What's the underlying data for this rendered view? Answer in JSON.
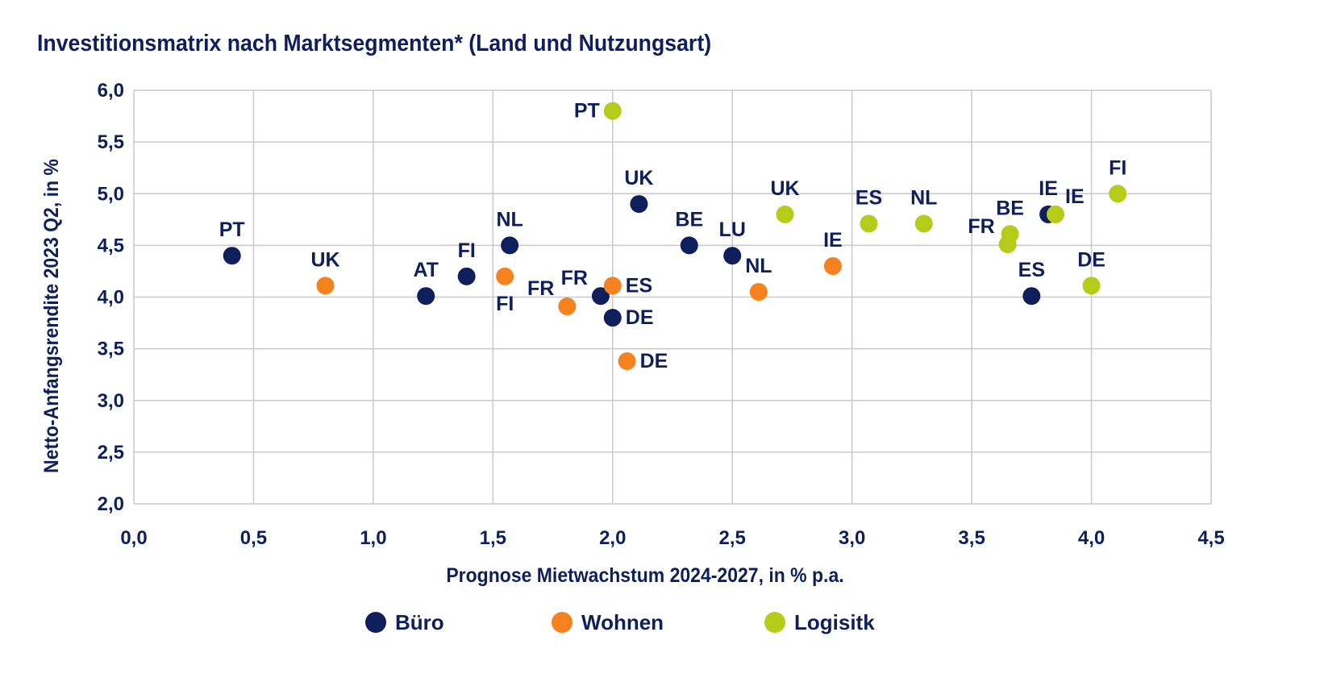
{
  "chart_data": {
    "type": "scatter",
    "title": "Investitionsmatrix nach Marktsegmenten* (Land und Nutzungsart)",
    "xlabel": "Prognose Mietwachstum 2024-2027, in % p.a.",
    "ylabel": "Netto-Anfangsrendite 2023 Q2, in %",
    "xlim": [
      0,
      4.5
    ],
    "ylim": [
      2.0,
      6.0
    ],
    "xticks": [
      "0,0",
      "0,5",
      "1,0",
      "1,5",
      "2,0",
      "2,5",
      "3,0",
      "3,5",
      "4,0",
      "4,5"
    ],
    "yticks": [
      "2,0",
      "2,5",
      "3,0",
      "3,5",
      "4,0",
      "4,5",
      "5,0",
      "5,5",
      "6,0"
    ],
    "grid": true,
    "legend_position": "bottom",
    "series": [
      {
        "name": "Büro",
        "color": "#0f1f5c",
        "points": [
          {
            "label": "PT",
            "x": 0.41,
            "y": 4.4,
            "label_pos": "top"
          },
          {
            "label": "AT",
            "x": 1.22,
            "y": 4.01,
            "label_pos": "top"
          },
          {
            "label": "FI",
            "x": 1.39,
            "y": 4.2,
            "label_pos": "top"
          },
          {
            "label": "NL",
            "x": 1.57,
            "y": 4.5,
            "label_pos": "top"
          },
          {
            "label": "FR",
            "x": 1.95,
            "y": 4.01,
            "label_pos": "top-left"
          },
          {
            "label": "DE",
            "x": 2.0,
            "y": 3.8,
            "label_pos": "right"
          },
          {
            "label": "UK",
            "x": 2.11,
            "y": 4.9,
            "label_pos": "top"
          },
          {
            "label": "BE",
            "x": 2.32,
            "y": 4.5,
            "label_pos": "top"
          },
          {
            "label": "LU",
            "x": 2.5,
            "y": 4.4,
            "label_pos": "top"
          },
          {
            "label": "ES",
            "x": 3.75,
            "y": 4.01,
            "label_pos": "top"
          },
          {
            "label": "IE",
            "x": 3.82,
            "y": 4.8,
            "label_pos": "top"
          }
        ]
      },
      {
        "name": "Wohnen",
        "color": "#f5821f",
        "points": [
          {
            "label": "UK",
            "x": 0.8,
            "y": 4.11,
            "label_pos": "top"
          },
          {
            "label": "FI",
            "x": 1.55,
            "y": 4.2,
            "label_pos": "bottom"
          },
          {
            "label": "FR",
            "x": 1.81,
            "y": 3.91,
            "label_pos": "top-left"
          },
          {
            "label": "ES",
            "x": 2.0,
            "y": 4.11,
            "label_pos": "right"
          },
          {
            "label": "DE",
            "x": 2.06,
            "y": 3.38,
            "label_pos": "right"
          },
          {
            "label": "NL",
            "x": 2.61,
            "y": 4.05,
            "label_pos": "top"
          },
          {
            "label": "IE",
            "x": 2.92,
            "y": 4.3,
            "label_pos": "top"
          }
        ]
      },
      {
        "name": "Logisitk",
        "color": "#b5cc18",
        "points": [
          {
            "label": "PT",
            "x": 2.0,
            "y": 5.8,
            "label_pos": "left"
          },
          {
            "label": "UK",
            "x": 2.72,
            "y": 4.8,
            "label_pos": "top"
          },
          {
            "label": "ES",
            "x": 3.07,
            "y": 4.71,
            "label_pos": "top"
          },
          {
            "label": "NL",
            "x": 3.3,
            "y": 4.71,
            "label_pos": "top"
          },
          {
            "label": "FR",
            "x": 3.65,
            "y": 4.51,
            "label_pos": "top-left"
          },
          {
            "label": "BE",
            "x": 3.66,
            "y": 4.61,
            "label_pos": "top"
          },
          {
            "label": "IE",
            "x": 3.85,
            "y": 4.8,
            "label_pos": "top-right"
          },
          {
            "label": "DE",
            "x": 4.0,
            "y": 4.11,
            "label_pos": "top"
          },
          {
            "label": "FI",
            "x": 4.11,
            "y": 5.0,
            "label_pos": "top"
          }
        ]
      }
    ]
  }
}
